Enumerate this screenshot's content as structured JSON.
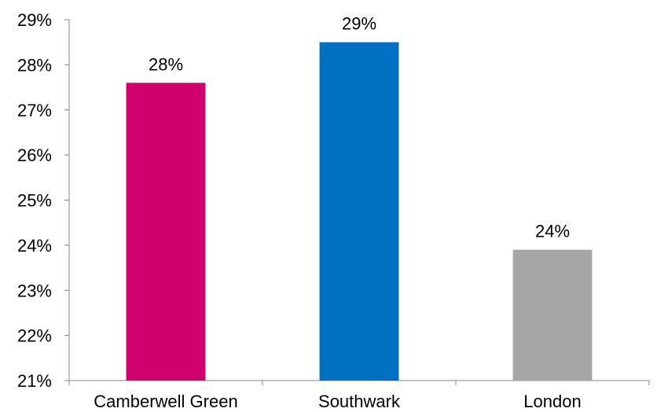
{
  "chart_data": {
    "type": "bar",
    "title": "",
    "xlabel": "",
    "ylabel": "",
    "categories": [
      "Camberwell Green",
      "Southwark",
      "London"
    ],
    "values": [
      27.6,
      28.5,
      23.9
    ],
    "data_labels": [
      "28%",
      "29%",
      "24%"
    ],
    "colors": [
      "#d1006f",
      "#0070c0",
      "#a6a6a6"
    ],
    "ylim": [
      21,
      29
    ],
    "yticks": [
      21,
      22,
      23,
      24,
      25,
      26,
      27,
      28,
      29
    ],
    "ytick_labels": [
      "21%",
      "22%",
      "23%",
      "24%",
      "25%",
      "26%",
      "27%",
      "28%",
      "29%"
    ],
    "grid": false,
    "legend": "none"
  }
}
